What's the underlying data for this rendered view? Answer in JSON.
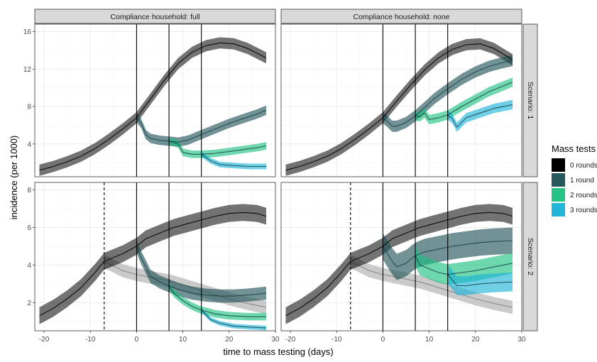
{
  "chart_data": {
    "type": "line",
    "xlabel": "time to mass testing (days)",
    "ylabel": "incidence (per 1000)",
    "xlim": [
      -22,
      30
    ],
    "x_ticks": [
      -20,
      -10,
      0,
      10,
      20,
      30
    ],
    "grid": true,
    "legend": {
      "title": "Mass tests",
      "placement": "right",
      "entries": [
        {
          "label": "0 rounds",
          "color": "#000000"
        },
        {
          "label": "1 round",
          "color": "#1b4f55"
        },
        {
          "label": "2 rounds",
          "color": "#19c07d"
        },
        {
          "label": "3 rounds",
          "color": "#17b1d6"
        }
      ]
    },
    "column_strips": [
      "Compliance household: full",
      "Compliance household: none"
    ],
    "row_strips": [
      "Scenario: 1",
      "Scenario: 2"
    ],
    "rows": [
      {
        "ylim": [
          0.5,
          16.8
        ],
        "y_ticks": [
          4,
          8,
          12,
          16
        ],
        "y_tick_labels": [
          "4",
          "8",
          "12",
          "16"
        ],
        "vertical_lines": [
          0,
          7,
          14
        ],
        "dashed_lines": [],
        "counterfactual": null
      },
      {
        "ylim": [
          0.5,
          8.4
        ],
        "y_ticks": [
          2,
          4,
          6,
          8
        ],
        "y_tick_labels": [
          "2",
          "4",
          "6",
          "8"
        ],
        "vertical_lines": [
          0,
          7,
          14
        ],
        "dashed_lines": [
          -7
        ],
        "counterfactual": {
          "color": "#b8b8b8",
          "x": [
            -7,
            -3,
            0,
            4,
            8,
            12,
            16,
            20,
            24,
            28
          ],
          "mean": [
            4.2,
            3.7,
            3.5,
            3.3,
            3.1,
            2.8,
            2.5,
            2.2,
            1.95,
            1.75
          ],
          "halfwidth": 0.35
        }
      }
    ],
    "panels": [
      {
        "column": "Compliance household: full",
        "row": "Scenario: 1",
        "series": [
          {
            "x": [
              -21,
              -18,
              -15,
              -12,
              -9,
              -6,
              -3,
              0,
              3,
              6,
              9,
              12,
              15,
              18,
              21,
              24,
              28
            ],
            "y": [
              1.2,
              1.6,
              2.1,
              2.7,
              3.5,
              4.5,
              5.6,
              6.8,
              8.8,
              10.8,
              12.6,
              13.8,
              14.5,
              14.8,
              14.7,
              14.2,
              13.2
            ],
            "halfwidth": 0.6
          },
          {
            "x": [
              0,
              1,
              2,
              3,
              5,
              7,
              9,
              11,
              14,
              17,
              20,
              23,
              26,
              28
            ],
            "y": [
              6.8,
              6.2,
              5.0,
              4.6,
              4.4,
              4.3,
              4.2,
              4.4,
              5.0,
              5.6,
              6.2,
              6.7,
              7.2,
              7.6
            ],
            "halfwidth": 0.5
          },
          {
            "x": [
              7,
              9,
              10,
              12,
              14,
              17,
              20,
              23,
              26,
              28
            ],
            "y": [
              4.3,
              4.0,
              3.1,
              2.9,
              2.9,
              3.0,
              3.2,
              3.4,
              3.6,
              3.8
            ],
            "halfwidth": 0.4
          },
          {
            "x": [
              14,
              16,
              18,
              21,
              24,
              28
            ],
            "y": [
              2.9,
              2.2,
              1.8,
              1.7,
              1.6,
              1.6
            ],
            "halfwidth": 0.3
          }
        ]
      },
      {
        "column": "Compliance household: none",
        "row": "Scenario: 1",
        "series": [
          {
            "x": [
              -21,
              -18,
              -15,
              -12,
              -9,
              -6,
              -3,
              0,
              3,
              6,
              9,
              12,
              15,
              18,
              21,
              24,
              28
            ],
            "y": [
              1.2,
              1.6,
              2.1,
              2.7,
              3.5,
              4.5,
              5.6,
              6.8,
              8.6,
              10.3,
              11.9,
              13.2,
              14.1,
              14.6,
              14.7,
              14.2,
              13.0
            ],
            "halfwidth": 0.6
          },
          {
            "x": [
              0,
              1,
              2,
              3,
              5,
              7,
              9,
              11,
              14,
              17,
              20,
              23,
              26,
              28
            ],
            "y": [
              6.8,
              6.4,
              5.9,
              5.9,
              6.3,
              7.0,
              7.9,
              8.8,
              9.9,
              10.9,
              11.7,
              12.3,
              12.7,
              12.9
            ],
            "halfwidth": 0.6
          },
          {
            "x": [
              7,
              8,
              9,
              10,
              12,
              14,
              17,
              20,
              23,
              26,
              28
            ],
            "y": [
              7.0,
              6.9,
              7.3,
              6.6,
              6.8,
              7.1,
              8.0,
              8.8,
              9.6,
              10.2,
              10.6
            ],
            "halfwidth": 0.5
          },
          {
            "x": [
              14,
              15,
              16,
              17,
              18,
              21,
              24,
              28
            ],
            "y": [
              7.1,
              6.7,
              5.8,
              6.3,
              6.8,
              7.3,
              7.8,
              8.2
            ],
            "halfwidth": 0.5
          }
        ]
      },
      {
        "column": "Compliance household: full",
        "row": "Scenario: 2",
        "series": [
          {
            "x": [
              -21,
              -18,
              -15,
              -12,
              -9,
              -7,
              -5,
              -3,
              0,
              2,
              5,
              8,
              11,
              14,
              17,
              20,
              23,
              26,
              28
            ],
            "y": [
              1.3,
              1.7,
              2.2,
              2.8,
              3.6,
              4.2,
              4.4,
              4.6,
              5.0,
              5.4,
              5.7,
              6.0,
              6.2,
              6.4,
              6.6,
              6.75,
              6.8,
              6.75,
              6.6
            ],
            "halfwidth": 0.45
          },
          {
            "x": [
              0,
              1,
              2,
              3,
              5,
              7,
              9,
              12,
              15,
              18,
              21,
              24,
              28
            ],
            "y": [
              5.0,
              4.4,
              3.9,
              3.4,
              3.1,
              2.9,
              2.7,
              2.5,
              2.4,
              2.35,
              2.35,
              2.4,
              2.5
            ],
            "halfwidth": 0.35
          },
          {
            "x": [
              7,
              8,
              10,
              12,
              14,
              17,
              20,
              24,
              28
            ],
            "y": [
              2.9,
              2.5,
              2.1,
              1.8,
              1.6,
              1.4,
              1.3,
              1.25,
              1.25
            ],
            "halfwidth": 0.2
          },
          {
            "x": [
              14,
              16,
              18,
              21,
              24,
              28
            ],
            "y": [
              1.6,
              1.1,
              0.9,
              0.75,
              0.7,
              0.65
            ],
            "halfwidth": 0.12
          }
        ]
      },
      {
        "column": "Compliance household: none",
        "row": "Scenario: 2",
        "series": [
          {
            "x": [
              -21,
              -18,
              -15,
              -12,
              -9,
              -7,
              -5,
              -3,
              0,
              2,
              5,
              8,
              11,
              14,
              17,
              20,
              23,
              26,
              28
            ],
            "y": [
              1.3,
              1.7,
              2.2,
              2.8,
              3.6,
              4.2,
              4.4,
              4.6,
              5.0,
              5.4,
              5.7,
              6.0,
              6.2,
              6.4,
              6.6,
              6.75,
              6.8,
              6.75,
              6.6
            ],
            "halfwidth": 0.45
          },
          {
            "x": [
              0,
              1,
              2,
              3,
              5,
              7,
              9,
              12,
              15,
              18,
              21,
              24,
              28
            ],
            "y": [
              5.0,
              4.6,
              4.2,
              3.9,
              4.1,
              4.5,
              4.7,
              4.85,
              5.0,
              5.1,
              5.2,
              5.25,
              5.3
            ],
            "halfwidth": 0.7
          },
          {
            "x": [
              7,
              8,
              10,
              12,
              14,
              17,
              20,
              24,
              28
            ],
            "y": [
              4.5,
              4.0,
              3.8,
              3.6,
              3.5,
              3.6,
              3.7,
              3.9,
              4.1
            ],
            "halfwidth": 0.55
          },
          {
            "x": [
              14,
              15,
              16,
              18,
              21,
              24,
              28
            ],
            "y": [
              3.5,
              3.2,
              2.9,
              2.9,
              3.0,
              3.05,
              3.1
            ],
            "halfwidth": 0.5
          }
        ]
      }
    ]
  }
}
